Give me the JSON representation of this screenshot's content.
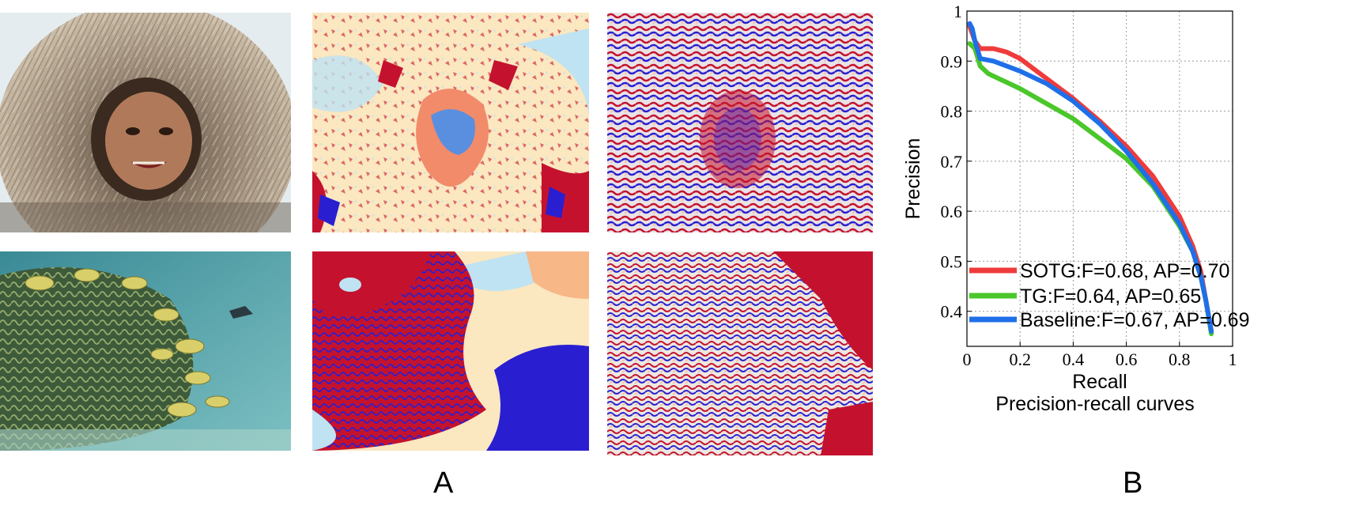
{
  "figure": {
    "panel_a_label": "A",
    "panel_b_label": "B",
    "panel_a_images": [
      "eskimo-child-photo",
      "eskimo-child-segmentation-map",
      "eskimo-child-texture-map",
      "coral-fish-photo",
      "coral-fish-segmentation-map",
      "coral-fish-texture-map"
    ]
  },
  "colors": {
    "sotg": "#ef3b3b",
    "tg": "#4ac72a",
    "baseline": "#1f6fe8",
    "map_red": "#c4122e",
    "map_blue": "#2a1fd0",
    "map_cream": "#fbe7c0",
    "map_lightblue": "#bfe3f2",
    "map_peach": "#f7b787"
  },
  "chart_data": {
    "type": "line",
    "title": "Precision-recall curves",
    "xlabel": "Recall",
    "ylabel": "Precision",
    "xlim": [
      0,
      1
    ],
    "ylim": [
      0.33,
      1
    ],
    "xticks": [
      "0",
      "0.2",
      "0.4",
      "0.6",
      "0.8",
      "1"
    ],
    "yticks": [
      "0.4",
      "0.5",
      "0.6",
      "0.7",
      "0.8",
      "0.9",
      "1"
    ],
    "grid": true,
    "legend_position": "bottom-left",
    "series": [
      {
        "name": "SOTG:F=0.68, AP=0.70",
        "color": "#ef3b3b",
        "x": [
          0.01,
          0.03,
          0.05,
          0.1,
          0.15,
          0.2,
          0.3,
          0.4,
          0.5,
          0.6,
          0.7,
          0.8,
          0.85,
          0.88,
          0.9,
          0.92
        ],
        "y": [
          0.97,
          0.94,
          0.925,
          0.925,
          0.918,
          0.905,
          0.865,
          0.825,
          0.78,
          0.73,
          0.67,
          0.59,
          0.53,
          0.48,
          0.42,
          0.36
        ]
      },
      {
        "name": "TG:F=0.64, AP=0.65",
        "color": "#4ac72a",
        "x": [
          0.01,
          0.03,
          0.05,
          0.08,
          0.1,
          0.2,
          0.3,
          0.4,
          0.5,
          0.6,
          0.7,
          0.8,
          0.85,
          0.88,
          0.9,
          0.92
        ],
        "y": [
          0.935,
          0.925,
          0.89,
          0.875,
          0.87,
          0.845,
          0.815,
          0.785,
          0.745,
          0.705,
          0.65,
          0.57,
          0.52,
          0.47,
          0.42,
          0.355
        ]
      },
      {
        "name": "Baseline:F=0.67, AP=0.69",
        "color": "#1f6fe8",
        "x": [
          0.01,
          0.02,
          0.03,
          0.05,
          0.1,
          0.2,
          0.3,
          0.4,
          0.5,
          0.6,
          0.7,
          0.8,
          0.85,
          0.88,
          0.9,
          0.92
        ],
        "y": [
          0.975,
          0.965,
          0.94,
          0.905,
          0.9,
          0.88,
          0.855,
          0.82,
          0.775,
          0.72,
          0.655,
          0.575,
          0.52,
          0.47,
          0.42,
          0.36
        ]
      }
    ]
  }
}
